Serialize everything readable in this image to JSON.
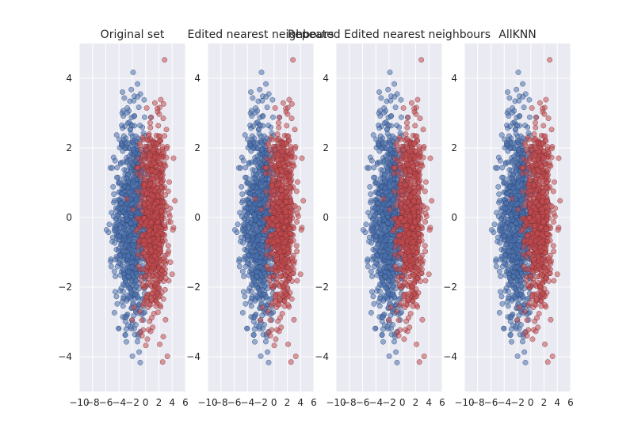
{
  "chart_data": [
    {
      "type": "scatter",
      "title": "Original set",
      "xlim": [
        -10,
        6
      ],
      "ylim": [
        -5,
        5
      ],
      "xticks": [
        -10,
        -8,
        -6,
        -4,
        -2,
        0,
        2,
        4,
        6
      ],
      "yticks": [
        -4,
        -2,
        0,
        2,
        4
      ],
      "grid": true,
      "series": [
        {
          "color": "#4c72b0",
          "center": [
            -2.0,
            0.0
          ],
          "spread": [
            1.3,
            1.45
          ],
          "count": 900
        },
        {
          "color": "#c44e52",
          "center": [
            1.2,
            -0.1
          ],
          "spread": [
            1.0,
            1.35
          ],
          "count": 900
        }
      ]
    },
    {
      "type": "scatter",
      "title": "Edited nearest neighbours",
      "xlim": [
        -10,
        6
      ],
      "ylim": [
        -5,
        5
      ],
      "xticks": [
        -10,
        -8,
        -6,
        -4,
        -2,
        0,
        2,
        4,
        6
      ],
      "yticks": [
        -4,
        -2,
        0,
        2,
        4
      ],
      "grid": true,
      "series": [
        {
          "color": "#4c72b0",
          "center": [
            -2.0,
            0.0
          ],
          "spread": [
            1.3,
            1.45
          ],
          "count": 900
        },
        {
          "color": "#c44e52",
          "center": [
            1.2,
            -0.1
          ],
          "spread": [
            1.0,
            1.35
          ],
          "count": 800
        }
      ]
    },
    {
      "type": "scatter",
      "title": "Repeated Edited nearest neighbours",
      "xlim": [
        -10,
        6
      ],
      "ylim": [
        -5,
        5
      ],
      "xticks": [
        -10,
        -8,
        -6,
        -4,
        -2,
        0,
        2,
        4,
        6
      ],
      "yticks": [
        -4,
        -2,
        0,
        2,
        4
      ],
      "grid": true,
      "series": [
        {
          "color": "#4c72b0",
          "center": [
            -2.0,
            0.0
          ],
          "spread": [
            1.3,
            1.45
          ],
          "count": 900
        },
        {
          "color": "#c44e52",
          "center": [
            1.2,
            -0.1
          ],
          "spread": [
            1.0,
            1.35
          ],
          "count": 780
        }
      ]
    },
    {
      "type": "scatter",
      "title": "AllKNN",
      "xlim": [
        -10,
        6
      ],
      "ylim": [
        -5,
        5
      ],
      "xticks": [
        -10,
        -8,
        -6,
        -4,
        -2,
        0,
        2,
        4,
        6
      ],
      "yticks": [
        -4,
        -2,
        0,
        2,
        4
      ],
      "grid": true,
      "series": [
        {
          "color": "#4c72b0",
          "center": [
            -2.0,
            0.0
          ],
          "spread": [
            1.3,
            1.45
          ],
          "count": 900
        },
        {
          "color": "#c44e52",
          "center": [
            1.2,
            -0.1
          ],
          "spread": [
            1.0,
            1.35
          ],
          "count": 780
        }
      ]
    }
  ]
}
